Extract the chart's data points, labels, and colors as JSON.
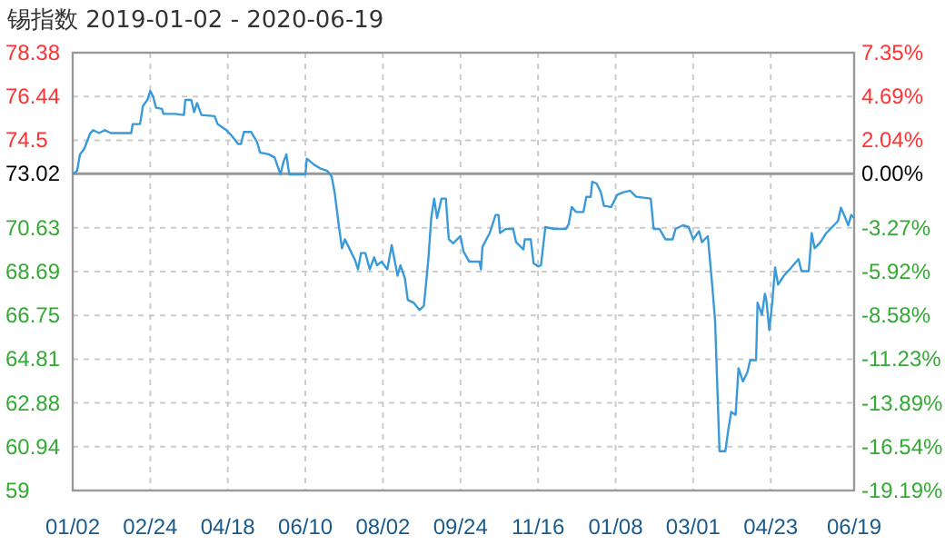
{
  "chart_data": {
    "type": "line",
    "title": "锡指数 2019-01-02 - 2020-06-19",
    "x": [
      "2019-01-02",
      "2019-01-05",
      "2019-01-07",
      "2019-01-10",
      "2019-01-14",
      "2019-01-16",
      "2019-01-20",
      "2019-01-24",
      "2019-01-28",
      "2019-02-11",
      "2019-02-12",
      "2019-02-17",
      "2019-02-19",
      "2019-02-22",
      "2019-02-24",
      "2019-02-26",
      "2019-02-28",
      "2019-03-04",
      "2019-03-05",
      "2019-03-13",
      "2019-03-19",
      "2019-03-20",
      "2019-03-24",
      "2019-03-26",
      "2019-03-28",
      "2019-03-31",
      "2019-04-09",
      "2019-04-11",
      "2019-04-17",
      "2019-04-21",
      "2019-04-25",
      "2019-04-27",
      "2019-04-29",
      "2019-05-04",
      "2019-05-08",
      "2019-05-10",
      "2019-05-16",
      "2019-05-20",
      "2019-05-24",
      "2019-05-26",
      "2019-05-28",
      "2019-05-30",
      "2019-06-10",
      "2019-06-11",
      "2019-06-16",
      "2019-06-20",
      "2019-06-25",
      "2019-06-28",
      "2019-06-30",
      "2019-07-03",
      "2019-07-05",
      "2019-07-07",
      "2019-07-11",
      "2019-07-14",
      "2019-07-16",
      "2019-07-18",
      "2019-07-21",
      "2019-07-24",
      "2019-07-27",
      "2019-07-29",
      "2019-08-01",
      "2019-08-05",
      "2019-08-08",
      "2019-08-10",
      "2019-08-12",
      "2019-08-14",
      "2019-08-17",
      "2019-08-19",
      "2019-08-23",
      "2019-08-27",
      "2019-08-30",
      "2019-09-02",
      "2019-09-04",
      "2019-09-06",
      "2019-09-08",
      "2019-09-11",
      "2019-09-14",
      "2019-09-16",
      "2019-09-19",
      "2019-09-24",
      "2019-09-26",
      "2019-09-30",
      "2019-10-07",
      "2019-10-08",
      "2019-10-09",
      "2019-10-14",
      "2019-10-18",
      "2019-10-20",
      "2019-10-21",
      "2019-10-25",
      "2019-10-30",
      "2019-11-01",
      "2019-11-06",
      "2019-11-07",
      "2019-11-11",
      "2019-11-13",
      "2019-11-16",
      "2019-11-18",
      "2019-11-21",
      "2019-11-27",
      "2019-12-05",
      "2019-12-07",
      "2019-12-09",
      "2019-12-12",
      "2019-12-17",
      "2019-12-19",
      "2019-12-22",
      "2019-12-23",
      "2019-12-26",
      "2019-12-29",
      "2019-12-31",
      "2020-01-05",
      "2020-01-09",
      "2020-01-13",
      "2020-01-18",
      "2020-01-22",
      "2020-02-01",
      "2020-02-03",
      "2020-02-07",
      "2020-02-11",
      "2020-02-16",
      "2020-02-18",
      "2020-02-23",
      "2020-02-27",
      "2020-03-01",
      "2020-03-05",
      "2020-03-07",
      "2020-03-11",
      "2020-03-14",
      "2020-03-16",
      "2020-03-19",
      "2020-03-23",
      "2020-03-25",
      "2020-03-27",
      "2020-03-30",
      "2020-04-01",
      "2020-04-04",
      "2020-04-07",
      "2020-04-09",
      "2020-04-13",
      "2020-04-14",
      "2020-04-17",
      "2020-04-19",
      "2020-04-20",
      "2020-04-22",
      "2020-04-24",
      "2020-04-26",
      "2020-04-28",
      "2020-05-02",
      "2020-05-06",
      "2020-05-12",
      "2020-05-14",
      "2020-05-19",
      "2020-05-21",
      "2020-05-23",
      "2020-05-27",
      "2020-05-31",
      "2020-06-04",
      "2020-06-08",
      "2020-06-10",
      "2020-06-13",
      "2020-06-15",
      "2020-06-17",
      "2020-06-19"
    ],
    "series": [
      {
        "color": "#3a9ad9",
        "values": [
          73.0,
          73.15,
          73.88,
          74.14,
          74.82,
          74.95,
          74.82,
          74.95,
          74.82,
          74.82,
          75.22,
          75.22,
          76.02,
          76.29,
          76.69,
          76.43,
          75.94,
          75.89,
          75.67,
          75.67,
          75.62,
          76.29,
          76.29,
          75.75,
          76.15,
          75.62,
          75.57,
          75.22,
          74.95,
          74.68,
          74.34,
          74.34,
          74.87,
          74.87,
          74.42,
          73.96,
          73.88,
          73.74,
          72.99,
          73.53,
          73.88,
          72.99,
          72.99,
          73.69,
          73.42,
          73.26,
          73.15,
          72.89,
          72.19,
          70.66,
          69.72,
          70.12,
          69.59,
          69.19,
          68.79,
          69.51,
          69.51,
          68.79,
          69.32,
          68.97,
          69.13,
          68.79,
          69.86,
          69.19,
          68.51,
          68.97,
          68.39,
          67.44,
          67.31,
          66.99,
          67.18,
          69.19,
          71.06,
          71.92,
          71.06,
          71.92,
          71.92,
          70.12,
          69.94,
          70.26,
          69.59,
          69.13,
          69.13,
          68.79,
          69.78,
          70.4,
          71.2,
          71.2,
          70.4,
          70.58,
          70.58,
          69.99,
          69.67,
          70.12,
          70.12,
          69.05,
          68.92,
          68.97,
          70.66,
          70.58,
          70.58,
          70.8,
          71.55,
          71.33,
          71.33,
          72.0,
          72.0,
          72.67,
          72.59,
          72.19,
          71.6,
          71.55,
          72.08,
          72.19,
          72.27,
          72.0,
          71.92,
          70.58,
          70.58,
          70.12,
          70.12,
          70.58,
          70.74,
          70.66,
          70.12,
          70.48,
          69.99,
          70.26,
          68.11,
          66.5,
          60.74,
          60.74,
          61.68,
          62.48,
          62.35,
          64.41,
          63.83,
          64.23,
          64.77,
          64.77,
          67.31,
          66.78,
          67.71,
          67.44,
          66.1,
          67.31,
          68.87,
          68.11,
          68.51,
          68.79,
          69.24,
          68.71,
          68.71,
          70.4,
          69.72,
          69.99,
          70.4,
          70.66,
          70.93,
          71.52,
          71.06,
          70.74,
          71.2,
          71.06
        ]
      }
    ],
    "xlim": [
      "2019-01-02",
      "2020-06-19"
    ],
    "xticks": [
      {
        "value": "2019-01-02",
        "label": "01/02"
      },
      {
        "value": "2019-02-24",
        "label": "02/24"
      },
      {
        "value": "2019-04-18",
        "label": "04/18"
      },
      {
        "value": "2019-06-10",
        "label": "06/10"
      },
      {
        "value": "2019-08-02",
        "label": "08/02"
      },
      {
        "value": "2019-09-24",
        "label": "09/24"
      },
      {
        "value": "2019-11-16",
        "label": "11/16"
      },
      {
        "value": "2020-01-08",
        "label": "01/08"
      },
      {
        "value": "2020-03-01",
        "label": "03/01"
      },
      {
        "value": "2020-04-23",
        "label": "04/23"
      },
      {
        "value": "2020-06-19",
        "label": "06/19"
      }
    ],
    "ylim": [
      59,
      78.38
    ],
    "yticks": [
      59,
      60.94,
      62.88,
      64.81,
      66.75,
      68.69,
      70.63,
      73.02,
      74.5,
      76.44,
      78.38
    ],
    "y2lim": [
      -19.19,
      7.35
    ],
    "y2ticks": [
      {
        "value": -19.19,
        "label": "-19.19%"
      },
      {
        "value": -16.54,
        "label": "-16.54%"
      },
      {
        "value": -13.89,
        "label": "-13.89%"
      },
      {
        "value": -11.23,
        "label": "-11.23%"
      },
      {
        "value": -8.58,
        "label": "-8.58%"
      },
      {
        "value": -5.92,
        "label": "-5.92%"
      },
      {
        "value": -3.27,
        "label": "-3.27%"
      },
      {
        "value": 0,
        "label": "0.00%"
      },
      {
        "value": 2.04,
        "label": "2.04%"
      },
      {
        "value": 4.69,
        "label": "4.69%"
      },
      {
        "value": 7.35,
        "label": "7.35%"
      }
    ],
    "ref_lines": [
      {
        "axis": "y",
        "value": 73.02,
        "color": "#999999"
      }
    ],
    "grid": true,
    "line_style": "solid"
  }
}
